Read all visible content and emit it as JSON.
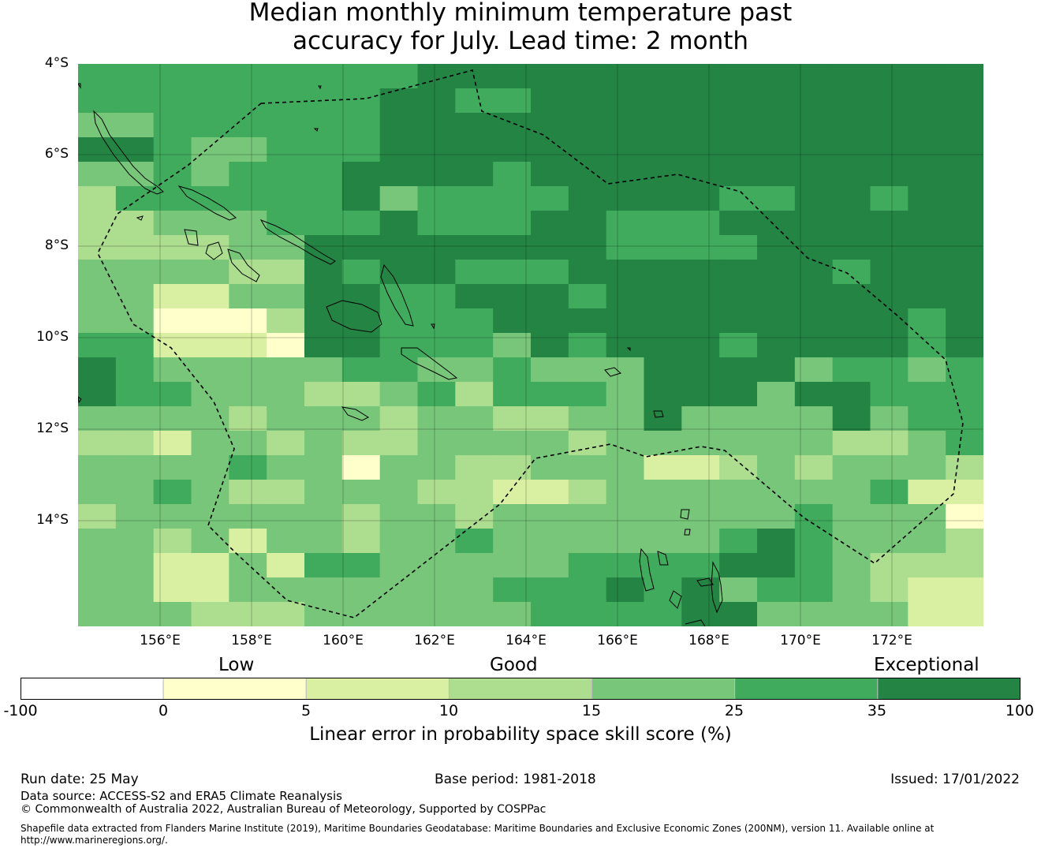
{
  "title": {
    "line1": "Median monthly minimum temperature past",
    "line2": "accuracy for July. Lead time: 2 month"
  },
  "map": {
    "lat_labels": [
      "4°S",
      "6°S",
      "8°S",
      "10°S",
      "12°S",
      "14°S"
    ],
    "lon_labels": [
      "156°E",
      "158°E",
      "160°E",
      "162°E",
      "164°E",
      "166°E",
      "168°E",
      "170°E",
      "172°E"
    ],
    "lat_range": [
      -4,
      -16.3
    ],
    "lon_range": [
      154.2,
      174
    ],
    "grid_cols": 24,
    "grid_rows": 23,
    "class_grid": [
      "555555555666666666666666",
      "555555556655666666666666",
      "445555556666666666666666",
      "665445556666666666666666",
      "445455566665666666666666",
      "355555564555566665566566",
      "334445556555665556666666",
      "333344666666665555666666",
      "444433656655566666665666",
      "442244665566656666666666",
      "441113665556666666666656",
      "552221665554656665666656",
      "654444455445444666645545",
      "655444334535554666466555",
      "444434443443344644446455",
      "332443433444434444443345",
      "444454414433444223434443",
      "445433444332234444444522",
      "344444434434444444454441",
      "443424434454444445654443",
      "442242554444455556654333",
      "442244444445556564554322",
      "444333444444555566444422"
    ],
    "palette": [
      "#ffffff",
      "#ffffcc",
      "#d9f0a3",
      "#addd8e",
      "#78c679",
      "#41ab5d",
      "#238443"
    ],
    "coast_color": "#000000",
    "boundary_style": "dashed"
  },
  "colorbar": {
    "category_labels": {
      "low": "Low",
      "good": "Good",
      "exceptional": "Exceptional"
    },
    "ticks": [
      "-100",
      "0",
      "5",
      "10",
      "15",
      "25",
      "35",
      "100"
    ],
    "colors": [
      "#ffffff",
      "#ffffcc",
      "#d9f0a3",
      "#addd8e",
      "#78c679",
      "#41ab5d",
      "#238443"
    ],
    "label": "Linear error in probability space skill score (%)"
  },
  "footer": {
    "run_date": "Run date: 25 May",
    "base_period": "Base period: 1981-2018",
    "issued": "Issued: 17/01/2022",
    "data_source": "Data source: ACCESS-S2 and ERA5 Climate Reanalysis",
    "copyright": "© Commonwealth of Australia 2022, Australian Bureau of Meteorology, Supported by COSPPac",
    "shapefile_line1": "Shapefile data extracted from Flanders Marine Institute (2019), Maritime Boundaries Geodatabase: Maritime Boundaries and Exclusive Economic Zones (200NM), version 11. Available online at",
    "shapefile_line2": "http://www.marineregions.org/."
  }
}
